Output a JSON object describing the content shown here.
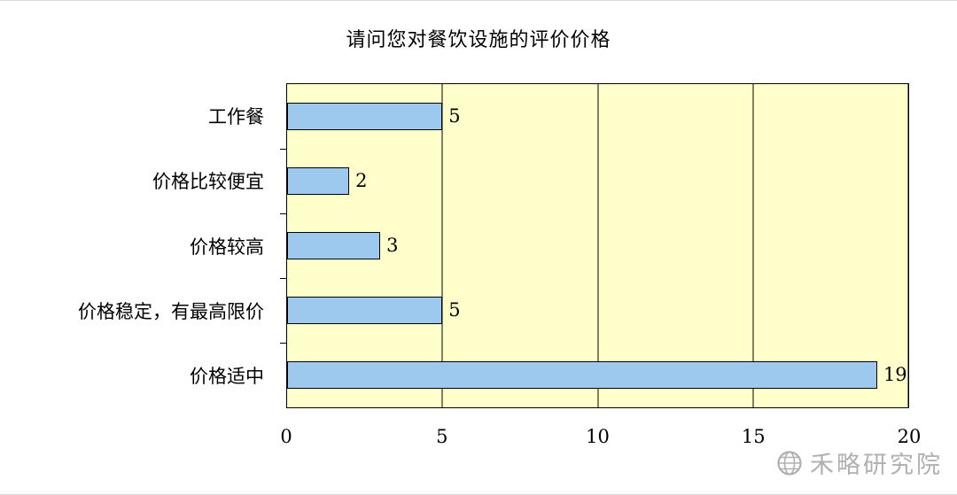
{
  "title": "请问您对餐饮设施的评价价格",
  "watermark": {
    "text": "禾略研究院",
    "icon": "globe-icon"
  },
  "colors": {
    "plot_bg": "#FFFFCC",
    "bar_fill": "#9DC9EE",
    "bar_border": "#000000",
    "axis": "#000000",
    "watermark": "#A3A3A3"
  },
  "chart_data": {
    "type": "bar",
    "orientation": "horizontal",
    "title": "请问您对餐饮设施的评价价格",
    "categories": [
      "工作餐",
      "价格比较便宜",
      "价格较高",
      "价格稳定，有最高限价",
      "价格适中"
    ],
    "values": [
      5,
      2,
      3,
      5,
      19
    ],
    "data_labels": [
      5,
      2,
      3,
      5,
      19
    ],
    "x_ticks": [
      0,
      5,
      10,
      15,
      20
    ],
    "xlim": [
      0,
      20
    ],
    "xlabel": "",
    "ylabel": "",
    "grid": "vertical",
    "legend": "none",
    "plot_background": "#FFFFCC"
  }
}
